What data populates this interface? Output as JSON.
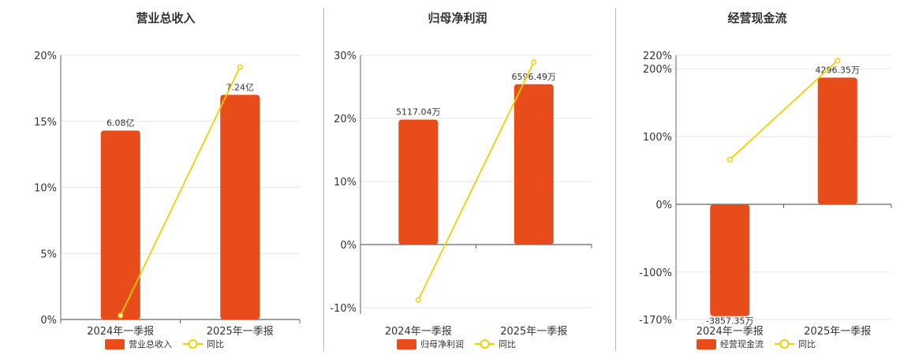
{
  "chart_data": [
    {
      "type": "bar",
      "title": "营业总收入",
      "categories": [
        "2024年一季报",
        "2025年一季报"
      ],
      "bar_series": {
        "name": "营业总收入",
        "values": [
          14.3,
          17.0
        ],
        "labels": [
          "6.08亿",
          "7.24亿"
        ],
        "color": "#e84c1b"
      },
      "line_series": {
        "name": "同比",
        "values": [
          0.3,
          19.1
        ],
        "color": "#f0d000"
      },
      "ylim": [
        0,
        20
      ],
      "yticks": [
        0,
        5,
        10,
        15,
        20
      ],
      "ytick_labels": [
        "0%",
        "5%",
        "10%",
        "15%",
        "20%"
      ],
      "grid": true,
      "legend_position": "bottom"
    },
    {
      "type": "bar",
      "title": "归母净利润",
      "categories": [
        "2024年一季报",
        "2025年一季报"
      ],
      "bar_series": {
        "name": "归母净利润",
        "values": [
          19.8,
          25.4
        ],
        "labels": [
          "5117.04万",
          "6596.49万"
        ],
        "color": "#e84c1b"
      },
      "line_series": {
        "name": "同比",
        "values": [
          -8.8,
          28.9
        ],
        "color": "#f0d000"
      },
      "ylim": [
        -11,
        30
      ],
      "yticks": [
        -10,
        0,
        10,
        20,
        30
      ],
      "ytick_labels": [
        "-10%",
        "0%",
        "10%",
        "20%",
        "30%"
      ],
      "grid": true,
      "legend_position": "bottom"
    },
    {
      "type": "bar",
      "title": "经营现金流",
      "categories": [
        "2024年一季报",
        "2025年一季报"
      ],
      "bar_series": {
        "name": "经营现金流",
        "values": [
          -165,
          187
        ],
        "labels": [
          "-3857.35万",
          "4296.35万"
        ],
        "color": "#e84c1b"
      },
      "line_series": {
        "name": "同比",
        "values": [
          66,
          212
        ],
        "color": "#f0d000"
      },
      "ylim": [
        -170,
        220
      ],
      "yticks": [
        -170,
        -100,
        0,
        100,
        200,
        220
      ],
      "ytick_labels": [
        "-170%",
        "-100%",
        "0%",
        "100%",
        "200%",
        "220%"
      ],
      "grid": true,
      "legend_position": "bottom"
    }
  ]
}
